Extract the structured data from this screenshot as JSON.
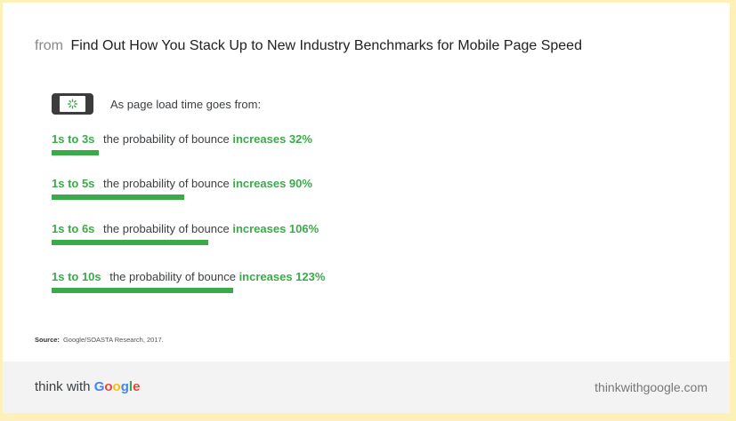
{
  "header": {
    "from_label": "from",
    "title": "Find Out How You Stack Up to New Industry Benchmarks for Mobile Page Speed"
  },
  "intro": {
    "icon": "phone-loading-icon",
    "text": "As page load time goes from:"
  },
  "chart_data": {
    "type": "bar",
    "orientation": "horizontal",
    "categories": [
      "1s to 3s",
      "1s to 5s",
      "1s to 6s",
      "1s to 10s"
    ],
    "series": [
      {
        "values": [
          32,
          90,
          106,
          123
        ]
      }
    ],
    "unit": "%",
    "middle_text": "the probability of bounce",
    "labels": [
      "increases 32%",
      "increases 90%",
      "increases 106%",
      "increases 123%"
    ],
    "bar_color": "#3aaa4a"
  },
  "source": {
    "label": "Source:",
    "text": "Google/SOASTA Research, 2017."
  },
  "footer": {
    "brand_prefix": "think with",
    "brand_letters": [
      "G",
      "o",
      "o",
      "g",
      "l",
      "e"
    ],
    "site": "thinkwithgoogle.com"
  },
  "colors": {
    "accent": "#3aaa4a",
    "background": "#fdf0b8",
    "footer_bg": "#f3f3f3"
  }
}
